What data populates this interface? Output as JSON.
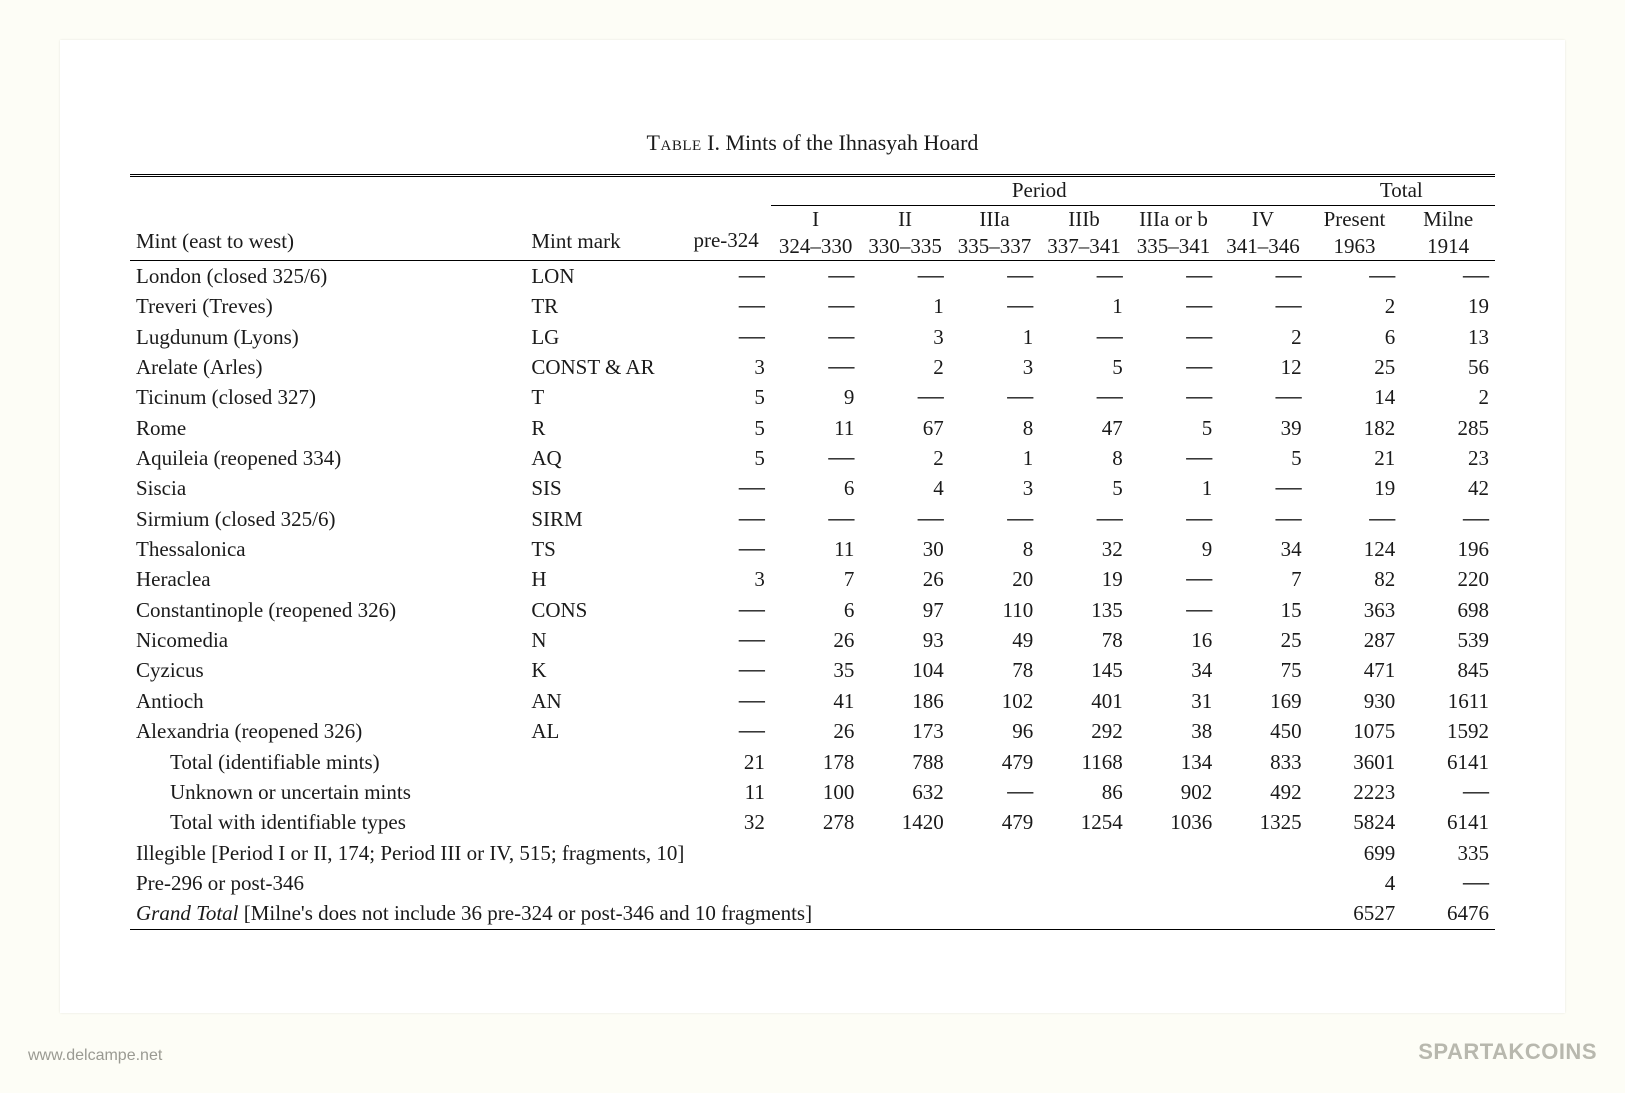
{
  "caption_prefix": "Table",
  "caption_text": " I. Mints of the Ihnasyah Hoard",
  "header": {
    "mint_label": "Mint (east to west)",
    "mark_label": "Mint mark",
    "period_group": "Period",
    "total_group": "Total",
    "periods": [
      {
        "top": "",
        "bot": "pre-324"
      },
      {
        "top": "I",
        "bot": "324–330"
      },
      {
        "top": "II",
        "bot": "330–335"
      },
      {
        "top": "IIIa",
        "bot": "335–337"
      },
      {
        "top": "IIIb",
        "bot": "337–341"
      },
      {
        "top": "IIIa or b",
        "bot": "335–341"
      },
      {
        "top": "IV",
        "bot": "341–346"
      }
    ],
    "totals": [
      {
        "top": "Present",
        "bot": "1963"
      },
      {
        "top": "Milne",
        "bot": "1914"
      }
    ]
  },
  "rows": [
    {
      "mint": "London (closed 325/6)",
      "mark": "LON",
      "vals": [
        "—",
        "—",
        "—",
        "—",
        "—",
        "—",
        "—",
        "—",
        "—"
      ]
    },
    {
      "mint": "Treveri (Treves)",
      "mark": "TR",
      "vals": [
        "—",
        "—",
        "1",
        "—",
        "1",
        "—",
        "—",
        "2",
        "19"
      ]
    },
    {
      "mint": "Lugdunum (Lyons)",
      "mark": "LG",
      "vals": [
        "—",
        "—",
        "3",
        "1",
        "—",
        "—",
        "2",
        "6",
        "13"
      ]
    },
    {
      "mint": "Arelate (Arles)",
      "mark": "CONST & AR",
      "vals": [
        "3",
        "—",
        "2",
        "3",
        "5",
        "—",
        "12",
        "25",
        "56"
      ]
    },
    {
      "mint": "Ticinum (closed 327)",
      "mark": "T",
      "vals": [
        "5",
        "9",
        "—",
        "—",
        "—",
        "—",
        "—",
        "14",
        "2"
      ]
    },
    {
      "mint": "Rome",
      "mark": "R",
      "vals": [
        "5",
        "11",
        "67",
        "8",
        "47",
        "5",
        "39",
        "182",
        "285"
      ]
    },
    {
      "mint": "Aquileia (reopened 334)",
      "mark": "AQ",
      "vals": [
        "5",
        "—",
        "2",
        "1",
        "8",
        "—",
        "5",
        "21",
        "23"
      ]
    },
    {
      "mint": "Siscia",
      "mark": "SIS",
      "vals": [
        "—",
        "6",
        "4",
        "3",
        "5",
        "1",
        "—",
        "19",
        "42"
      ]
    },
    {
      "mint": "Sirmium (closed 325/6)",
      "mark": "SIRM",
      "vals": [
        "—",
        "—",
        "—",
        "—",
        "—",
        "—",
        "—",
        "—",
        "—"
      ]
    },
    {
      "mint": "Thessalonica",
      "mark": "TS",
      "vals": [
        "—",
        "11",
        "30",
        "8",
        "32",
        "9",
        "34",
        "124",
        "196"
      ]
    },
    {
      "mint": "Heraclea",
      "mark": "H",
      "vals": [
        "3",
        "7",
        "26",
        "20",
        "19",
        "—",
        "7",
        "82",
        "220"
      ]
    },
    {
      "mint": "Constantinople (reopened 326)",
      "mark": "CONS",
      "vals": [
        "—",
        "6",
        "97",
        "110",
        "135",
        "—",
        "15",
        "363",
        "698"
      ]
    },
    {
      "mint": "Nicomedia",
      "mark": "N",
      "vals": [
        "—",
        "26",
        "93",
        "49",
        "78",
        "16",
        "25",
        "287",
        "539"
      ]
    },
    {
      "mint": "Cyzicus",
      "mark": "K",
      "vals": [
        "—",
        "35",
        "104",
        "78",
        "145",
        "34",
        "75",
        "471",
        "845"
      ]
    },
    {
      "mint": "Antioch",
      "mark": "AN",
      "vals": [
        "—",
        "41",
        "186",
        "102",
        "401",
        "31",
        "169",
        "930",
        "1611"
      ]
    },
    {
      "mint": "Alexandria (reopened 326)",
      "mark": "AL",
      "vals": [
        "—",
        "26",
        "173",
        "96",
        "292",
        "38",
        "450",
        "1075",
        "1592"
      ]
    }
  ],
  "summary": [
    {
      "label": "Total (identifiable mints)",
      "indent": true,
      "vals": [
        "21",
        "178",
        "788",
        "479",
        "1168",
        "134",
        "833",
        "3601",
        "6141"
      ]
    },
    {
      "label": "Unknown or uncertain mints",
      "indent": true,
      "vals": [
        "11",
        "100",
        "632",
        "—",
        "86",
        "902",
        "492",
        "2223",
        "—"
      ]
    },
    {
      "label": "Total with identifiable types",
      "indent": true,
      "vals": [
        "32",
        "278",
        "1420",
        "479",
        "1254",
        "1036",
        "1325",
        "5824",
        "6141"
      ]
    }
  ],
  "span_rows": [
    {
      "label": "Illegible [Period I or II, 174; Period III or IV, 515; fragments, 10]",
      "present": "699",
      "milne": "335"
    },
    {
      "label": "Pre-296 or post-346",
      "present": "4",
      "milne": "—"
    }
  ],
  "grand": {
    "prefix": "Grand Total",
    "suffix": " [Milne's does not include 36 pre-324 or post-346 and 10 fragments]",
    "present": "6527",
    "milne": "6476"
  },
  "footer": {
    "left": "www.delcampe.net",
    "right": "SPARTAKCOINS"
  }
}
